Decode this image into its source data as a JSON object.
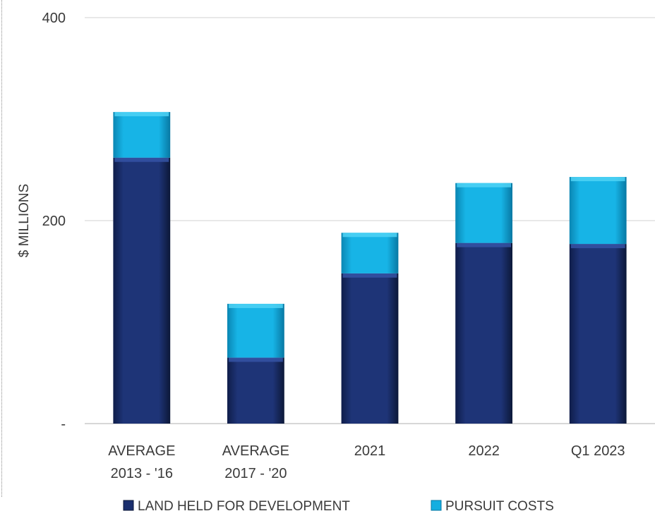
{
  "chart_data": {
    "type": "bar",
    "stacked": true,
    "categories": [
      [
        "AVERAGE",
        "2013 - '16"
      ],
      [
        "AVERAGE",
        "2017 - '20"
      ],
      [
        "2021"
      ],
      [
        "2022"
      ],
      [
        "Q1 2023"
      ]
    ],
    "series": [
      {
        "name": "LAND HELD FOR DEVELOPMENT",
        "color": "#1B2F6E",
        "values": [
          262,
          65,
          148,
          178,
          177
        ]
      },
      {
        "name": "PURSUIT COSTS",
        "color": "#14AEE0",
        "values": [
          45,
          53,
          40,
          59,
          66
        ]
      }
    ],
    "ylabel": "$ MILLIONS",
    "ylim": [
      0,
      400
    ],
    "yticks": [
      {
        "value": 0,
        "label": "-"
      },
      {
        "value": 200,
        "label": "200"
      },
      {
        "value": 400,
        "label": "400"
      }
    ],
    "grid": true,
    "legend_position": "bottom"
  }
}
